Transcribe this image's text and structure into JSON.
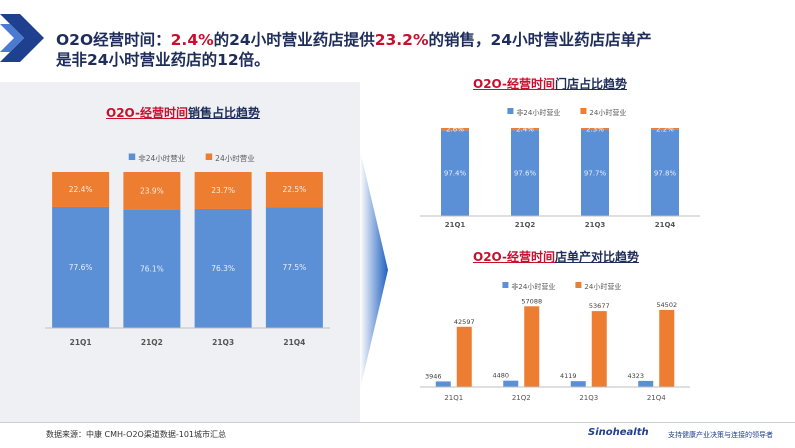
{
  "header": {
    "prefix": "O2O经营时间：",
    "hl1": "2.4%",
    "mid1": "的24小时营业药店提供",
    "hl2": "23.2%",
    "mid2": "的销售，24小时营业药店店单产",
    "line2": "是非24小时营业药店的12倍。"
  },
  "colors": {
    "blue": "#5b8fd6",
    "orange": "#ed7d31",
    "navy": "#1f2d5a",
    "red": "#c8102e"
  },
  "footer": {
    "source": "数据来源：中康 CMH-O2O渠道数据-101城市汇总",
    "brand": "Sinohealth",
    "tagline": "支持健康产业决策与连接的领导者"
  },
  "chart_data": [
    {
      "type": "bar",
      "stacked": true,
      "title_red": "O2O-经营时间",
      "title_rest": "销售占比趋势",
      "categories": [
        "21Q1",
        "21Q2",
        "21Q3",
        "21Q4"
      ],
      "series": [
        {
          "name": "非24小时营业",
          "values": [
            77.6,
            76.1,
            76.3,
            77.5
          ],
          "labels": [
            "77.6%",
            "76.1%",
            "76.3%",
            "77.5%"
          ],
          "color": "#5b8fd6"
        },
        {
          "name": "24小时营业",
          "values": [
            22.4,
            23.9,
            23.7,
            22.5
          ],
          "labels": [
            "22.4%",
            "23.9%",
            "23.7%",
            "22.5%"
          ],
          "color": "#ed7d31"
        }
      ],
      "ylim": [
        0,
        100
      ],
      "legend": "top"
    },
    {
      "type": "bar",
      "stacked": true,
      "title_red": "O2O-经营时间",
      "title_rest": "门店占比趋势",
      "categories": [
        "21Q1",
        "21Q2",
        "21Q3",
        "21Q4"
      ],
      "series": [
        {
          "name": "非24小时营业",
          "values": [
            97.4,
            97.6,
            97.7,
            97.8
          ],
          "labels": [
            "97.4%",
            "97.6%",
            "97.7%",
            "97.8%"
          ],
          "color": "#5b8fd6"
        },
        {
          "name": "24小时营业",
          "values": [
            2.6,
            2.4,
            2.3,
            2.2
          ],
          "labels": [
            "2.6%",
            "2.4%",
            "2.3%",
            "2.2%"
          ],
          "color": "#ed7d31"
        }
      ],
      "ylim": [
        0,
        100
      ],
      "legend": "top"
    },
    {
      "type": "bar",
      "stacked": false,
      "title_red": "O2O-经营时间",
      "title_rest": "店单产对比趋势",
      "categories": [
        "21Q1",
        "21Q2",
        "21Q3",
        "21Q4"
      ],
      "series": [
        {
          "name": "非24小时营业",
          "values": [
            3946,
            4480,
            4119,
            4323
          ],
          "labels": [
            "3946",
            "4480",
            "4119",
            "4323"
          ],
          "color": "#5b8fd6"
        },
        {
          "name": "24小时营业",
          "values": [
            42597,
            57088,
            53677,
            54502
          ],
          "labels": [
            "42597",
            "57088",
            "53677",
            "54502"
          ],
          "color": "#ed7d31"
        }
      ],
      "ylim": [
        0,
        58000
      ],
      "legend": "top"
    }
  ]
}
